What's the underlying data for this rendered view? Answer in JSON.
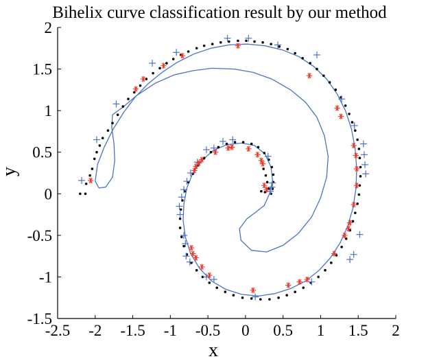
{
  "chart_data": {
    "type": "scatter",
    "title": "Bihelix curve classification result by our method",
    "xlabel": "x",
    "ylabel": "y",
    "xlim": [
      -2.5,
      2
    ],
    "ylim": [
      -1.5,
      2
    ],
    "xticks": [
      "-2.5",
      "-2",
      "-1.5",
      "-1",
      "-0.5",
      "0",
      "0.5",
      "1",
      "1.5",
      "2"
    ],
    "yticks": [
      "-1.5",
      "-1",
      "-0.5",
      "0",
      "0.5",
      "1",
      "1.5",
      "2"
    ],
    "grid": false,
    "colors": {
      "dots": "#000000",
      "plus": "#4a72c4",
      "star": "#ee3322",
      "boundary": "#4a72c4"
    },
    "series": [
      {
        "marker": "dot",
        "points": [
          [
            -2.2,
            0.0
          ],
          [
            -2.13,
            0.0
          ],
          [
            -2.12,
            0.12
          ],
          [
            -2.07,
            0.22
          ],
          [
            -2.04,
            0.3
          ],
          [
            -2.01,
            0.42
          ],
          [
            -1.98,
            0.5
          ],
          [
            -1.94,
            0.58
          ],
          [
            -1.9,
            0.67
          ],
          [
            -1.83,
            0.76
          ],
          [
            -1.77,
            0.85
          ],
          [
            -1.7,
            0.95
          ],
          [
            -1.63,
            1.05
          ],
          [
            -1.56,
            1.14
          ],
          [
            -1.48,
            1.22
          ],
          [
            -1.4,
            1.3
          ],
          [
            -1.32,
            1.38
          ],
          [
            -1.23,
            1.45
          ],
          [
            -1.14,
            1.51
          ],
          [
            -1.05,
            1.57
          ],
          [
            -0.96,
            1.62
          ],
          [
            -0.86,
            1.67
          ],
          [
            -0.76,
            1.71
          ],
          [
            -0.65,
            1.75
          ],
          [
            -0.55,
            1.78
          ],
          [
            -0.44,
            1.8
          ],
          [
            -0.33,
            1.82
          ],
          [
            -0.22,
            1.83
          ],
          [
            -0.1,
            1.84
          ],
          [
            0.01,
            1.84
          ],
          [
            0.12,
            1.83
          ],
          [
            0.23,
            1.82
          ],
          [
            0.34,
            1.8
          ],
          [
            0.45,
            1.77
          ],
          [
            0.56,
            1.74
          ],
          [
            0.66,
            1.69
          ],
          [
            0.76,
            1.63
          ],
          [
            0.86,
            1.57
          ],
          [
            0.95,
            1.5
          ],
          [
            1.04,
            1.42
          ],
          [
            1.12,
            1.34
          ],
          [
            1.2,
            1.25
          ],
          [
            1.27,
            1.16
          ],
          [
            1.33,
            1.06
          ],
          [
            1.38,
            0.96
          ],
          [
            1.42,
            0.86
          ],
          [
            1.46,
            0.76
          ],
          [
            1.49,
            0.65
          ],
          [
            1.51,
            0.54
          ],
          [
            1.52,
            0.43
          ],
          [
            1.53,
            0.32
          ],
          [
            1.53,
            0.21
          ],
          [
            1.52,
            0.1
          ],
          [
            1.51,
            -0.01
          ],
          [
            1.49,
            -0.12
          ],
          [
            1.46,
            -0.23
          ],
          [
            1.43,
            -0.33
          ],
          [
            1.39,
            -0.44
          ],
          [
            1.34,
            -0.54
          ],
          [
            1.28,
            -0.64
          ],
          [
            1.21,
            -0.74
          ],
          [
            1.14,
            -0.83
          ],
          [
            1.06,
            -0.92
          ],
          [
            0.97,
            -1.0
          ],
          [
            0.87,
            -1.07
          ],
          [
            0.77,
            -1.13
          ],
          [
            0.66,
            -1.18
          ],
          [
            0.55,
            -1.22
          ],
          [
            0.44,
            -1.25
          ],
          [
            0.32,
            -1.27
          ],
          [
            0.2,
            -1.27
          ],
          [
            0.08,
            -1.26
          ],
          [
            -0.04,
            -1.25
          ],
          [
            -0.16,
            -1.22
          ],
          [
            -0.27,
            -1.18
          ],
          [
            -0.38,
            -1.13
          ],
          [
            -0.48,
            -1.07
          ],
          [
            -0.57,
            -1.0
          ],
          [
            -0.65,
            -0.92
          ],
          [
            -0.72,
            -0.83
          ],
          [
            -0.78,
            -0.73
          ],
          [
            -0.82,
            -0.63
          ],
          [
            -0.85,
            -0.52
          ],
          [
            -0.87,
            -0.41
          ],
          [
            -0.87,
            -0.3
          ],
          [
            -0.86,
            -0.19
          ],
          [
            -0.84,
            -0.08
          ],
          [
            -0.81,
            0.03
          ],
          [
            -0.76,
            0.14
          ],
          [
            -0.7,
            0.24
          ],
          [
            -0.63,
            0.34
          ],
          [
            -0.55,
            0.43
          ],
          [
            -0.46,
            0.5
          ],
          [
            -0.36,
            0.56
          ],
          [
            -0.25,
            0.6
          ],
          [
            -0.14,
            0.62
          ],
          [
            -0.03,
            0.62
          ],
          [
            0.08,
            0.6
          ],
          [
            0.17,
            0.56
          ],
          [
            0.25,
            0.49
          ],
          [
            0.31,
            0.41
          ],
          [
            0.35,
            0.32
          ],
          [
            0.37,
            0.23
          ],
          [
            0.37,
            0.14
          ],
          [
            0.36,
            0.06
          ],
          [
            0.34,
            0.0
          ],
          [
            0.31,
            0.06
          ],
          [
            0.29,
            0.14
          ],
          [
            0.27,
            0.22
          ],
          [
            0.24,
            0.3
          ],
          [
            0.21,
            0.03
          ],
          [
            0.26,
            0.02
          ]
        ]
      },
      {
        "marker": "plus",
        "points": [
          [
            -2.18,
            0.16
          ],
          [
            -1.98,
            0.65
          ],
          [
            -1.72,
            1.08
          ],
          [
            -1.24,
            1.57
          ],
          [
            -0.92,
            1.7
          ],
          [
            -0.24,
            1.87
          ],
          [
            0.04,
            1.87
          ],
          [
            0.43,
            1.79
          ],
          [
            0.95,
            1.67
          ],
          [
            1.28,
            1.14
          ],
          [
            1.45,
            0.82
          ],
          [
            1.57,
            0.6
          ],
          [
            1.58,
            0.47
          ],
          [
            1.59,
            0.35
          ],
          [
            1.6,
            0.24
          ],
          [
            1.52,
            -0.49
          ],
          [
            1.44,
            -0.73
          ],
          [
            1.39,
            -0.79
          ],
          [
            0.88,
            -1.06
          ],
          [
            0.13,
            -1.24
          ],
          [
            -0.42,
            -1.03
          ],
          [
            -0.52,
            -1.0
          ],
          [
            -0.74,
            -0.82
          ],
          [
            -0.79,
            -0.75
          ],
          [
            -0.8,
            -0.6
          ],
          [
            -0.82,
            -0.5
          ],
          [
            -0.87,
            -0.25
          ],
          [
            -0.88,
            -0.15
          ],
          [
            -0.85,
            -0.04
          ],
          [
            -0.82,
            0.05
          ],
          [
            -0.78,
            0.15
          ],
          [
            -0.73,
            0.25
          ],
          [
            -0.64,
            0.38
          ],
          [
            -0.52,
            0.53
          ],
          [
            -0.42,
            0.55
          ],
          [
            -0.3,
            0.63
          ],
          [
            -0.17,
            0.65
          ],
          [
            0.3,
            0.45
          ],
          [
            0.36,
            0.13
          ],
          [
            0.35,
            0.08
          ],
          [
            0.33,
            0.03
          ]
        ]
      },
      {
        "marker": "star",
        "points": [
          [
            -2.06,
            0.16
          ],
          [
            -1.46,
            1.26
          ],
          [
            -1.36,
            1.38
          ],
          [
            -1.09,
            1.54
          ],
          [
            -0.84,
            1.66
          ],
          [
            -0.1,
            1.78
          ],
          [
            0.85,
            1.42
          ],
          [
            1.22,
            1.03
          ],
          [
            1.27,
            0.93
          ],
          [
            1.44,
            0.58
          ],
          [
            1.47,
            0.46
          ],
          [
            1.48,
            0.3
          ],
          [
            1.48,
            0.1
          ],
          [
            1.44,
            -0.13
          ],
          [
            1.39,
            -0.35
          ],
          [
            1.37,
            -0.42
          ],
          [
            1.32,
            -0.5
          ],
          [
            1.18,
            -0.72
          ],
          [
            0.82,
            -1.03
          ],
          [
            0.72,
            -1.06
          ],
          [
            0.57,
            -1.1
          ],
          [
            0.1,
            -1.16
          ],
          [
            -0.48,
            -0.98
          ],
          [
            -0.58,
            -0.88
          ],
          [
            -0.66,
            -0.77
          ],
          [
            -0.72,
            -0.65
          ],
          [
            -0.7,
            -0.72
          ],
          [
            -0.68,
            0.28
          ],
          [
            -0.66,
            0.33
          ],
          [
            -0.62,
            0.37
          ],
          [
            -0.58,
            0.41
          ],
          [
            -0.4,
            0.5
          ],
          [
            -0.23,
            0.55
          ],
          [
            -0.18,
            0.56
          ],
          [
            0.04,
            0.54
          ],
          [
            0.16,
            0.47
          ],
          [
            0.21,
            0.4
          ],
          [
            0.23,
            0.36
          ],
          [
            0.25,
            0.1
          ],
          [
            0.28,
            0.05
          ]
        ]
      }
    ],
    "boundary": [
      [
        -2.0,
        0.15
      ],
      [
        -1.95,
        0.07
      ],
      [
        -1.86,
        0.08
      ],
      [
        -1.77,
        0.2
      ],
      [
        -1.74,
        0.4
      ],
      [
        -1.75,
        0.6
      ],
      [
        -1.78,
        0.8
      ],
      [
        -1.77,
        0.95
      ],
      [
        -1.62,
        1.05
      ],
      [
        -1.45,
        1.18
      ],
      [
        -1.2,
        1.33
      ],
      [
        -0.95,
        1.43
      ],
      [
        -0.7,
        1.48
      ],
      [
        -0.45,
        1.51
      ],
      [
        -0.15,
        1.5
      ],
      [
        0.1,
        1.46
      ],
      [
        0.35,
        1.38
      ],
      [
        0.6,
        1.25
      ],
      [
        0.8,
        1.1
      ],
      [
        0.95,
        0.92
      ],
      [
        1.05,
        0.7
      ],
      [
        1.1,
        0.45
      ],
      [
        1.08,
        0.2
      ],
      [
        1.0,
        -0.05
      ],
      [
        0.88,
        -0.28
      ],
      [
        0.7,
        -0.48
      ],
      [
        0.5,
        -0.62
      ],
      [
        0.28,
        -0.7
      ],
      [
        0.08,
        -0.68
      ],
      [
        -0.06,
        -0.56
      ],
      [
        -0.08,
        -0.42
      ],
      [
        0.02,
        -0.3
      ],
      [
        0.14,
        -0.22
      ],
      [
        0.25,
        -0.14
      ],
      [
        0.32,
        0.0
      ],
      [
        0.36,
        0.16
      ],
      [
        0.34,
        0.32
      ],
      [
        0.26,
        0.48
      ],
      [
        0.12,
        0.58
      ],
      [
        -0.05,
        0.61
      ],
      [
        -0.25,
        0.59
      ],
      [
        -0.43,
        0.52
      ],
      [
        -0.58,
        0.4
      ],
      [
        -0.7,
        0.25
      ],
      [
        -0.78,
        0.07
      ],
      [
        -0.82,
        -0.12
      ],
      [
        -0.83,
        -0.32
      ],
      [
        -0.8,
        -0.52
      ],
      [
        -0.73,
        -0.72
      ],
      [
        -0.61,
        -0.9
      ],
      [
        -0.45,
        -1.05
      ],
      [
        -0.26,
        -1.15
      ],
      [
        -0.05,
        -1.21
      ],
      [
        0.17,
        -1.23
      ],
      [
        0.39,
        -1.2
      ],
      [
        0.6,
        -1.14
      ],
      [
        0.8,
        -1.05
      ],
      [
        0.98,
        -0.92
      ],
      [
        1.13,
        -0.77
      ],
      [
        1.26,
        -0.59
      ],
      [
        1.36,
        -0.39
      ],
      [
        1.43,
        -0.17
      ],
      [
        1.47,
        0.06
      ],
      [
        1.48,
        0.3
      ],
      [
        1.46,
        0.54
      ],
      [
        1.41,
        0.78
      ],
      [
        1.33,
        1.0
      ],
      [
        1.22,
        1.2
      ],
      [
        1.08,
        1.38
      ],
      [
        0.91,
        1.53
      ],
      [
        0.71,
        1.65
      ],
      [
        0.49,
        1.73
      ],
      [
        0.26,
        1.78
      ],
      [
        0.02,
        1.8
      ],
      [
        -0.22,
        1.79
      ],
      [
        -0.46,
        1.75
      ],
      [
        -0.69,
        1.68
      ],
      [
        -0.91,
        1.58
      ],
      [
        -1.11,
        1.46
      ],
      [
        -1.3,
        1.32
      ],
      [
        -1.47,
        1.16
      ],
      [
        -1.62,
        0.98
      ],
      [
        -1.76,
        0.78
      ],
      [
        -1.88,
        0.56
      ],
      [
        -1.97,
        0.35
      ],
      [
        -2.0,
        0.15
      ]
    ]
  }
}
